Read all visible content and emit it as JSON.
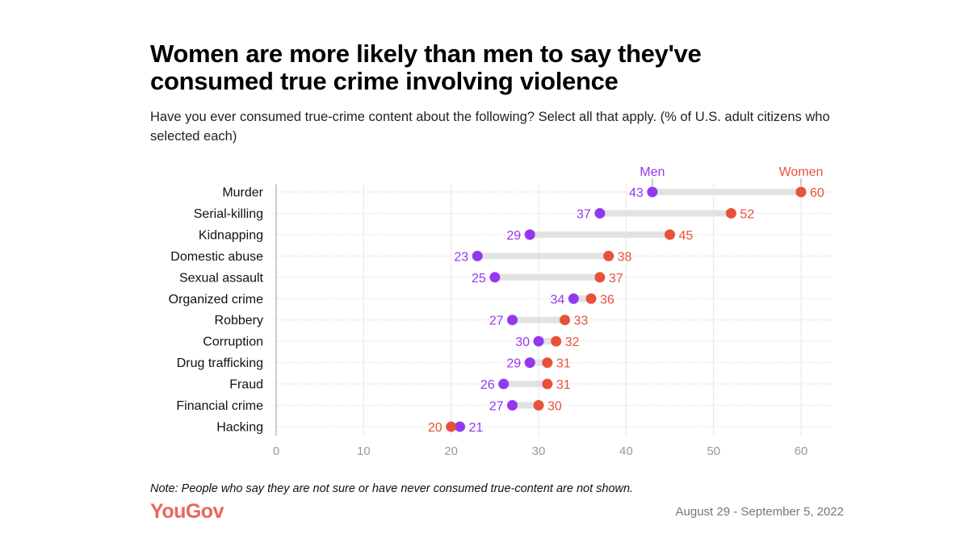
{
  "title": "Women are more likely than men to say they've consumed true crime involving violence",
  "subtitle": "Have you ever consumed true-crime content about the following? Select all that apply. (% of U.S. adult citizens who selected each)",
  "note": "Note: People who say they are not sure or have never consumed true-content are not shown.",
  "logo": "YouGov",
  "date_range": "August 29 - September 5, 2022",
  "chart_data": {
    "type": "dot-plot",
    "categories": [
      "Murder",
      "Serial-killing",
      "Kidnapping",
      "Domestic abuse",
      "Sexual assault",
      "Organized crime",
      "Robbery",
      "Corruption",
      "Drug trafficking",
      "Fraud",
      "Financial crime",
      "Hacking"
    ],
    "series": [
      {
        "name": "Men",
        "color": "#9438f0",
        "values": [
          43,
          37,
          29,
          23,
          25,
          34,
          27,
          30,
          29,
          26,
          27,
          21
        ]
      },
      {
        "name": "Women",
        "color": "#e8513a",
        "values": [
          60,
          52,
          45,
          38,
          37,
          36,
          33,
          32,
          31,
          31,
          30,
          20
        ]
      }
    ],
    "xlim": [
      0,
      60
    ],
    "xticks": [
      0,
      10,
      20,
      30,
      40,
      50,
      60
    ],
    "grid": true,
    "legend": "labels above first row"
  }
}
